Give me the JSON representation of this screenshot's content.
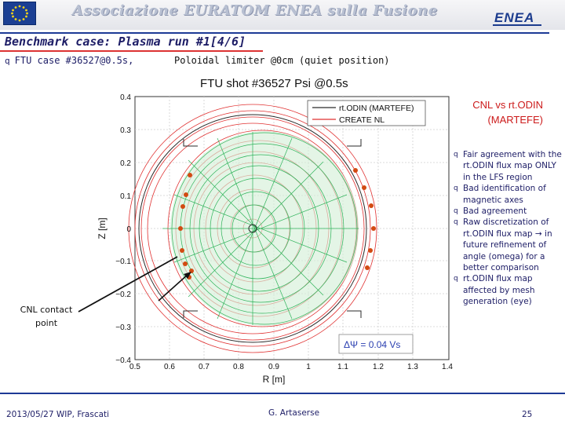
{
  "header": {
    "org_name": "Associazione EURATOM ENEA sulla Fusione",
    "enea_logo": "ENEA",
    "eu_flag_icon": "eu-flag-icon"
  },
  "slide": {
    "title": "Benchmark case: Plasma run #1[4/6]",
    "subtitle_bullet": "q",
    "subtitle_a": "FTU case #36527@0.5s,",
    "subtitle_b": "Poloidal limiter @0cm (quiet position)"
  },
  "plot": {
    "title": "FTU shot #36527 Psi @0.5s",
    "xlabel": "R [m]",
    "ylabel": "Z [m]",
    "x_ticks": [
      "0.5",
      "0.6",
      "0.7",
      "0.8",
      "0.9",
      "1",
      "1.1",
      "1.2",
      "1.3",
      "1.4"
    ],
    "y_ticks": [
      "0.4",
      "0.3",
      "0.2",
      "0.1",
      "0",
      "−0.1",
      "−0.2",
      "−0.3",
      "−0.4"
    ],
    "legend": [
      "rt.ODIN (MARTEFE)",
      "CREATE NL"
    ],
    "annotation": "ΔΨ = 0.04 Vs",
    "colors": {
      "rtodin": "#2a2a2a",
      "create": "#e03030",
      "flux_green": "#2fb35a",
      "markers": "#d24a12"
    }
  },
  "panel": {
    "title_line1": "CNL vs rt.ODIN",
    "title_line2": "(MARTEFE)",
    "bullet_mark": "q",
    "bullets": [
      "Fair agreement with the rt.ODIN flux map ONLY in the LFS region",
      "Bad identification of magnetic axes",
      "Bad agreement",
      "Raw discretization of rt.ODIN flux map → in future refinement of angle (omega) for a better comparison",
      "rt.ODIN flux map affected by mesh generation (eye)"
    ]
  },
  "contact": {
    "line1": "CNL contact",
    "line2": "point"
  },
  "footer": {
    "date_event": "2013/05/27   WIP, Frascati",
    "author": "G. Artaserse",
    "page": "25"
  }
}
